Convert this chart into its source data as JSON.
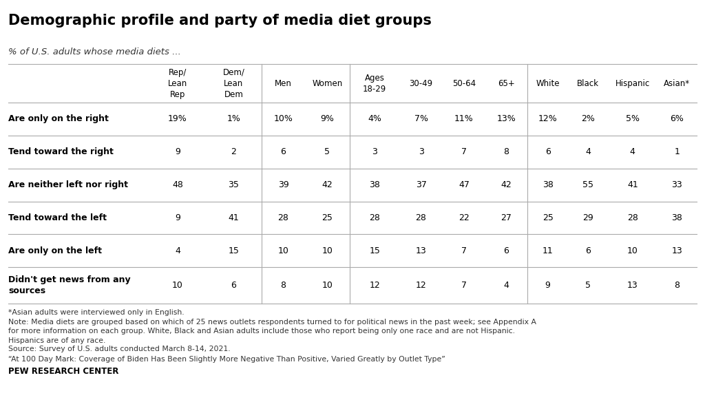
{
  "title": "Demographic profile and party of media diet groups",
  "subtitle": "% of U.S. adults whose media diets ...",
  "col_headers": [
    "Rep/\nLean\nRep",
    "Dem/\nLean\nDem",
    "Men",
    "Women",
    "Ages\n18-29",
    "30-49",
    "50-64",
    "65+",
    "White",
    "Black",
    "Hispanic",
    "Asian*"
  ],
  "row_labels": [
    "Are only on the right",
    "Tend toward the right",
    "Are neither left nor right",
    "Tend toward the left",
    "Are only on the left",
    "Didn't get news from any\nsources"
  ],
  "data": [
    [
      "19%",
      "1%",
      "10%",
      "9%",
      "4%",
      "7%",
      "11%",
      "13%",
      "12%",
      "2%",
      "5%",
      "6%"
    ],
    [
      "9",
      "2",
      "6",
      "5",
      "3",
      "3",
      "7",
      "8",
      "6",
      "4",
      "4",
      "1"
    ],
    [
      "48",
      "35",
      "39",
      "42",
      "38",
      "37",
      "47",
      "42",
      "38",
      "55",
      "41",
      "33"
    ],
    [
      "9",
      "41",
      "28",
      "25",
      "28",
      "28",
      "22",
      "27",
      "25",
      "29",
      "28",
      "38"
    ],
    [
      "4",
      "15",
      "10",
      "10",
      "15",
      "13",
      "7",
      "6",
      "11",
      "6",
      "10",
      "13"
    ],
    [
      "10",
      "6",
      "8",
      "10",
      "12",
      "12",
      "7",
      "4",
      "9",
      "5",
      "13",
      "8"
    ]
  ],
  "footnotes": [
    "*Asian adults were interviewed only in English.",
    "Note: Media diets are grouped based on which of 25 news outlets respondents turned to for political news in the past week; see Appendix A\nfor more information on each group. White, Black and Asian adults include those who report being only one race and are not Hispanic.\nHispanics are of any race.",
    "Source: Survey of U.S. adults conducted March 8-14, 2021.",
    "“At 100 Day Mark: Coverage of Biden Has Been Slightly More Negative Than Positive, Varied Greatly by Outlet Type”"
  ],
  "source_label": "PEW RESEARCH CENTER",
  "divider_cols": [
    1,
    3,
    7
  ],
  "bg_color": "#ffffff",
  "header_color": "#000000",
  "text_color": "#000000",
  "line_color": "#aaaaaa",
  "row_label_bold": true
}
